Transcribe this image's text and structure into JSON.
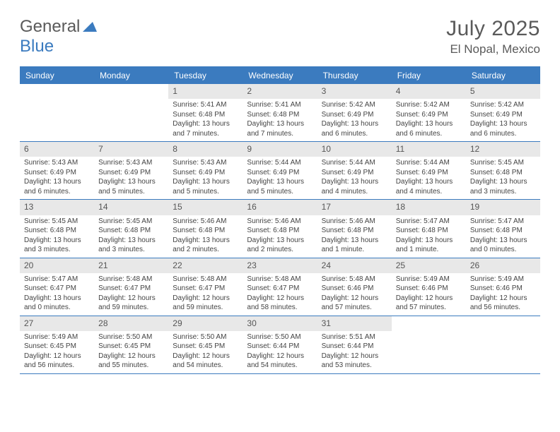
{
  "brand": {
    "part1": "General",
    "part2": "Blue"
  },
  "title": "July 2025",
  "location": "El Nopal, Mexico",
  "colors": {
    "accent": "#3b7bbf",
    "header_text": "#5a5a5a",
    "daynum_bg": "#e8e8e8",
    "body_text": "#444444",
    "background": "#ffffff"
  },
  "dow": [
    "Sunday",
    "Monday",
    "Tuesday",
    "Wednesday",
    "Thursday",
    "Friday",
    "Saturday"
  ],
  "calendar": {
    "type": "table",
    "columns": 7,
    "rows": 5,
    "cell_font_size_pt": 7.5,
    "daynum_font_size_pt": 9,
    "dow_font_size_pt": 9
  },
  "weeks": [
    [
      {
        "empty": true
      },
      {
        "empty": true
      },
      {
        "num": "1",
        "sunrise": "Sunrise: 5:41 AM",
        "sunset": "Sunset: 6:48 PM",
        "daylight1": "Daylight: 13 hours",
        "daylight2": "and 7 minutes."
      },
      {
        "num": "2",
        "sunrise": "Sunrise: 5:41 AM",
        "sunset": "Sunset: 6:48 PM",
        "daylight1": "Daylight: 13 hours",
        "daylight2": "and 7 minutes."
      },
      {
        "num": "3",
        "sunrise": "Sunrise: 5:42 AM",
        "sunset": "Sunset: 6:49 PM",
        "daylight1": "Daylight: 13 hours",
        "daylight2": "and 6 minutes."
      },
      {
        "num": "4",
        "sunrise": "Sunrise: 5:42 AM",
        "sunset": "Sunset: 6:49 PM",
        "daylight1": "Daylight: 13 hours",
        "daylight2": "and 6 minutes."
      },
      {
        "num": "5",
        "sunrise": "Sunrise: 5:42 AM",
        "sunset": "Sunset: 6:49 PM",
        "daylight1": "Daylight: 13 hours",
        "daylight2": "and 6 minutes."
      }
    ],
    [
      {
        "num": "6",
        "sunrise": "Sunrise: 5:43 AM",
        "sunset": "Sunset: 6:49 PM",
        "daylight1": "Daylight: 13 hours",
        "daylight2": "and 6 minutes."
      },
      {
        "num": "7",
        "sunrise": "Sunrise: 5:43 AM",
        "sunset": "Sunset: 6:49 PM",
        "daylight1": "Daylight: 13 hours",
        "daylight2": "and 5 minutes."
      },
      {
        "num": "8",
        "sunrise": "Sunrise: 5:43 AM",
        "sunset": "Sunset: 6:49 PM",
        "daylight1": "Daylight: 13 hours",
        "daylight2": "and 5 minutes."
      },
      {
        "num": "9",
        "sunrise": "Sunrise: 5:44 AM",
        "sunset": "Sunset: 6:49 PM",
        "daylight1": "Daylight: 13 hours",
        "daylight2": "and 5 minutes."
      },
      {
        "num": "10",
        "sunrise": "Sunrise: 5:44 AM",
        "sunset": "Sunset: 6:49 PM",
        "daylight1": "Daylight: 13 hours",
        "daylight2": "and 4 minutes."
      },
      {
        "num": "11",
        "sunrise": "Sunrise: 5:44 AM",
        "sunset": "Sunset: 6:49 PM",
        "daylight1": "Daylight: 13 hours",
        "daylight2": "and 4 minutes."
      },
      {
        "num": "12",
        "sunrise": "Sunrise: 5:45 AM",
        "sunset": "Sunset: 6:48 PM",
        "daylight1": "Daylight: 13 hours",
        "daylight2": "and 3 minutes."
      }
    ],
    [
      {
        "num": "13",
        "sunrise": "Sunrise: 5:45 AM",
        "sunset": "Sunset: 6:48 PM",
        "daylight1": "Daylight: 13 hours",
        "daylight2": "and 3 minutes."
      },
      {
        "num": "14",
        "sunrise": "Sunrise: 5:45 AM",
        "sunset": "Sunset: 6:48 PM",
        "daylight1": "Daylight: 13 hours",
        "daylight2": "and 3 minutes."
      },
      {
        "num": "15",
        "sunrise": "Sunrise: 5:46 AM",
        "sunset": "Sunset: 6:48 PM",
        "daylight1": "Daylight: 13 hours",
        "daylight2": "and 2 minutes."
      },
      {
        "num": "16",
        "sunrise": "Sunrise: 5:46 AM",
        "sunset": "Sunset: 6:48 PM",
        "daylight1": "Daylight: 13 hours",
        "daylight2": "and 2 minutes."
      },
      {
        "num": "17",
        "sunrise": "Sunrise: 5:46 AM",
        "sunset": "Sunset: 6:48 PM",
        "daylight1": "Daylight: 13 hours",
        "daylight2": "and 1 minute."
      },
      {
        "num": "18",
        "sunrise": "Sunrise: 5:47 AM",
        "sunset": "Sunset: 6:48 PM",
        "daylight1": "Daylight: 13 hours",
        "daylight2": "and 1 minute."
      },
      {
        "num": "19",
        "sunrise": "Sunrise: 5:47 AM",
        "sunset": "Sunset: 6:48 PM",
        "daylight1": "Daylight: 13 hours",
        "daylight2": "and 0 minutes."
      }
    ],
    [
      {
        "num": "20",
        "sunrise": "Sunrise: 5:47 AM",
        "sunset": "Sunset: 6:47 PM",
        "daylight1": "Daylight: 13 hours",
        "daylight2": "and 0 minutes."
      },
      {
        "num": "21",
        "sunrise": "Sunrise: 5:48 AM",
        "sunset": "Sunset: 6:47 PM",
        "daylight1": "Daylight: 12 hours",
        "daylight2": "and 59 minutes."
      },
      {
        "num": "22",
        "sunrise": "Sunrise: 5:48 AM",
        "sunset": "Sunset: 6:47 PM",
        "daylight1": "Daylight: 12 hours",
        "daylight2": "and 59 minutes."
      },
      {
        "num": "23",
        "sunrise": "Sunrise: 5:48 AM",
        "sunset": "Sunset: 6:47 PM",
        "daylight1": "Daylight: 12 hours",
        "daylight2": "and 58 minutes."
      },
      {
        "num": "24",
        "sunrise": "Sunrise: 5:48 AM",
        "sunset": "Sunset: 6:46 PM",
        "daylight1": "Daylight: 12 hours",
        "daylight2": "and 57 minutes."
      },
      {
        "num": "25",
        "sunrise": "Sunrise: 5:49 AM",
        "sunset": "Sunset: 6:46 PM",
        "daylight1": "Daylight: 12 hours",
        "daylight2": "and 57 minutes."
      },
      {
        "num": "26",
        "sunrise": "Sunrise: 5:49 AM",
        "sunset": "Sunset: 6:46 PM",
        "daylight1": "Daylight: 12 hours",
        "daylight2": "and 56 minutes."
      }
    ],
    [
      {
        "num": "27",
        "sunrise": "Sunrise: 5:49 AM",
        "sunset": "Sunset: 6:45 PM",
        "daylight1": "Daylight: 12 hours",
        "daylight2": "and 56 minutes."
      },
      {
        "num": "28",
        "sunrise": "Sunrise: 5:50 AM",
        "sunset": "Sunset: 6:45 PM",
        "daylight1": "Daylight: 12 hours",
        "daylight2": "and 55 minutes."
      },
      {
        "num": "29",
        "sunrise": "Sunrise: 5:50 AM",
        "sunset": "Sunset: 6:45 PM",
        "daylight1": "Daylight: 12 hours",
        "daylight2": "and 54 minutes."
      },
      {
        "num": "30",
        "sunrise": "Sunrise: 5:50 AM",
        "sunset": "Sunset: 6:44 PM",
        "daylight1": "Daylight: 12 hours",
        "daylight2": "and 54 minutes."
      },
      {
        "num": "31",
        "sunrise": "Sunrise: 5:51 AM",
        "sunset": "Sunset: 6:44 PM",
        "daylight1": "Daylight: 12 hours",
        "daylight2": "and 53 minutes."
      },
      {
        "empty": true
      },
      {
        "empty": true
      }
    ]
  ]
}
